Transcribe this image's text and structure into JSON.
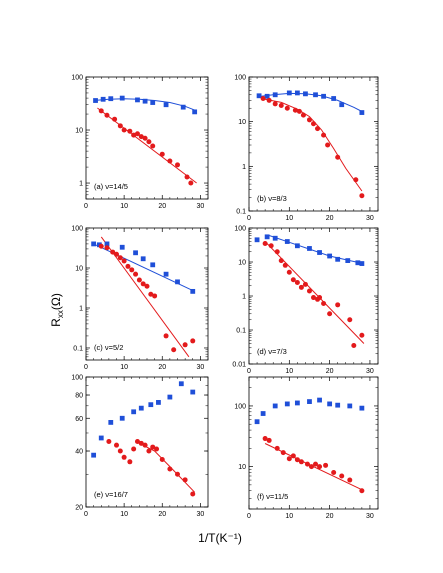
{
  "figure": {
    "ylabel_main": "R",
    "ylabel_sub": "xx",
    "ylabel_unit": "(Ω)",
    "xlabel": "1/T(K⁻¹)"
  },
  "chart_data": [
    {
      "type": "scatter",
      "label": "(a) ν=14/5",
      "yscale": "log",
      "ylim": [
        0.5,
        100
      ],
      "yticks": [
        1,
        10,
        100
      ],
      "ytick_labels": [
        "1",
        "10",
        "100"
      ],
      "xlim": [
        0,
        32
      ],
      "xticks": [
        0,
        10,
        20,
        30
      ],
      "xtick_labels": [
        "0",
        "10",
        "20",
        "30"
      ],
      "series": [
        {
          "color": "#1f4fd8",
          "marker": "square",
          "x": [
            2.5,
            4.5,
            6.5,
            9.5,
            13.5,
            15.5,
            17.5,
            21,
            25.5,
            28.5
          ],
          "y": [
            36,
            38,
            39,
            40,
            37,
            35,
            33,
            30,
            27,
            22
          ]
        },
        {
          "color": "#e31a1c",
          "marker": "circle",
          "x": [
            4,
            5.5,
            7.5,
            9,
            10,
            11.5,
            12.5,
            13.5,
            14.5,
            15.5,
            16.5,
            17.5,
            20,
            22,
            24,
            26.5,
            27.5
          ],
          "y": [
            23,
            19,
            16,
            12,
            10,
            9.5,
            8,
            8.5,
            7.5,
            7,
            6,
            5,
            3.5,
            2.6,
            2.2,
            1.3,
            1.0
          ]
        }
      ],
      "fits": [
        {
          "color": "#1f4fd8",
          "x": [
            2,
            6,
            10,
            14,
            18,
            22,
            26,
            29
          ],
          "y": [
            36,
            38,
            39,
            38,
            36,
            33,
            28,
            23
          ]
        },
        {
          "color": "#e31a1c",
          "x": [
            3,
            29
          ],
          "y": [
            26,
            1.0
          ]
        }
      ]
    },
    {
      "type": "scatter",
      "label": "(b) ν=8/3",
      "yscale": "log",
      "ylim": [
        0.1,
        100
      ],
      "yticks": [
        0.1,
        1,
        10,
        100
      ],
      "ytick_labels": [
        "0.1",
        "1",
        "10",
        "100"
      ],
      "xlim": [
        0,
        32
      ],
      "xticks": [
        0,
        10,
        20,
        30
      ],
      "xtick_labels": [
        "0",
        "10",
        "20",
        "30"
      ],
      "series": [
        {
          "color": "#1f4fd8",
          "marker": "square",
          "x": [
            2.5,
            4.5,
            6.5,
            10,
            12,
            14,
            16.5,
            18.5,
            21,
            23,
            28
          ],
          "y": [
            38,
            37,
            40,
            44,
            44,
            42,
            40,
            37,
            33,
            24,
            16
          ]
        },
        {
          "color": "#e31a1c",
          "marker": "circle",
          "x": [
            3.5,
            5,
            6.5,
            8,
            9.5,
            11.5,
            12.5,
            13.5,
            15,
            16,
            17,
            18.5,
            19.5,
            22,
            26.5,
            28
          ],
          "y": [
            33,
            30,
            25,
            23,
            20,
            18,
            17,
            14,
            11,
            9,
            7,
            5,
            3,
            1.6,
            0.5,
            0.22
          ]
        }
      ],
      "fits": [
        {
          "color": "#1f4fd8",
          "x": [
            2,
            6,
            10,
            14,
            18,
            22,
            26,
            28.5
          ],
          "y": [
            36,
            40,
            43,
            42,
            38,
            30,
            21,
            16
          ]
        },
        {
          "color": "#e31a1c",
          "x": [
            3,
            8,
            12,
            15,
            18,
            21,
            24,
            28
          ],
          "y": [
            33,
            27,
            19,
            13,
            6.5,
            2.5,
            0.9,
            0.28
          ]
        }
      ]
    },
    {
      "type": "scatter",
      "label": "(c) ν=5/2",
      "yscale": "log",
      "ylim": [
        0.05,
        100
      ],
      "yticks": [
        0.1,
        1,
        10,
        100
      ],
      "ytick_labels": [
        "0.1",
        "1",
        "10",
        "100"
      ],
      "xlim": [
        0,
        32
      ],
      "xticks": [
        0,
        10,
        20,
        30
      ],
      "xtick_labels": [
        "0",
        "10",
        "20",
        "30"
      ],
      "series": [
        {
          "color": "#1f4fd8",
          "marker": "square",
          "x": [
            2,
            3.5,
            5.5,
            9.5,
            13,
            15,
            17.5,
            21,
            24,
            28
          ],
          "y": [
            40,
            38,
            40,
            33,
            24,
            17,
            12,
            7,
            4.5,
            2.6
          ]
        },
        {
          "color": "#e31a1c",
          "marker": "circle",
          "x": [
            4,
            5.5,
            7,
            8,
            9,
            10,
            11,
            12,
            13,
            14,
            15,
            16,
            17,
            18,
            21,
            23,
            26,
            28
          ],
          "y": [
            35,
            32,
            25,
            22,
            18,
            15,
            11,
            9,
            7,
            5,
            4,
            3.5,
            2.2,
            2.0,
            0.2,
            0.09,
            0.12,
            0.15
          ]
        }
      ],
      "fits": [
        {
          "color": "#1f4fd8",
          "x": [
            2,
            28.5
          ],
          "y": [
            40,
            2.6
          ]
        },
        {
          "color": "#e31a1c",
          "x": [
            4,
            27
          ],
          "y": [
            60,
            0.06
          ]
        }
      ]
    },
    {
      "type": "scatter",
      "label": "(d) ν=7/3",
      "yscale": "log",
      "ylim": [
        0.01,
        100
      ],
      "yticks": [
        0.01,
        0.1,
        1,
        10,
        100
      ],
      "ytick_labels": [
        "0.01",
        "0.1",
        "1",
        "10",
        "100"
      ],
      "xlim": [
        0,
        32
      ],
      "xticks": [
        0,
        10,
        20,
        30
      ],
      "xtick_labels": [
        "0",
        "10",
        "20",
        "30"
      ],
      "series": [
        {
          "color": "#1f4fd8",
          "marker": "square",
          "x": [
            2,
            4.5,
            6.5,
            9.5,
            12,
            15,
            17.5,
            20,
            22,
            24.5,
            27,
            28
          ],
          "y": [
            45,
            55,
            50,
            40,
            30,
            25,
            19,
            15,
            12,
            11,
            9.5,
            9
          ]
        },
        {
          "color": "#e31a1c",
          "marker": "circle",
          "x": [
            4,
            5.5,
            7,
            8,
            9,
            10,
            11,
            12,
            13,
            14,
            15,
            16,
            17,
            17.5,
            18.5,
            20,
            22,
            25,
            26,
            28
          ],
          "y": [
            35,
            30,
            20,
            11,
            8,
            5,
            3,
            2.5,
            1.8,
            2.2,
            1.4,
            0.9,
            0.8,
            0.9,
            0.6,
            0.3,
            0.55,
            0.2,
            0.035,
            0.07
          ]
        }
      ],
      "fits": [
        {
          "color": "#1f4fd8",
          "x": [
            5,
            10,
            15,
            20,
            25,
            28.5
          ],
          "y": [
            60,
            38,
            24,
            15,
            11,
            9
          ]
        },
        {
          "color": "#e31a1c",
          "x": [
            4,
            28.5
          ],
          "y": [
            40,
            0.04
          ]
        }
      ]
    },
    {
      "type": "scatter",
      "label": "(e) ν=16/7",
      "yscale": "log",
      "ylim": [
        20,
        100
      ],
      "yticks": [
        20,
        40,
        60,
        80,
        100
      ],
      "ytick_labels": [
        "20",
        "40",
        "60",
        "80",
        "100"
      ],
      "xlim": [
        0,
        32
      ],
      "xticks": [
        0,
        10,
        20,
        30
      ],
      "xtick_labels": [
        "0",
        "10",
        "20",
        "30"
      ],
      "series": [
        {
          "color": "#1f4fd8",
          "marker": "square",
          "x": [
            2,
            4,
            6.5,
            9.5,
            12.5,
            14.5,
            17,
            19,
            22,
            25,
            28
          ],
          "y": [
            38,
            47,
            57,
            60,
            65,
            68,
            71,
            73,
            78,
            92,
            83
          ]
        },
        {
          "color": "#e31a1c",
          "marker": "circle",
          "x": [
            6,
            8,
            9,
            10,
            11.5,
            12.5,
            13.5,
            14.5,
            15.5,
            16.5,
            17.5,
            18.5,
            20,
            22,
            24,
            26,
            28
          ],
          "y": [
            45,
            43,
            40,
            37,
            35,
            41,
            45,
            44,
            43,
            40,
            42,
            41,
            36,
            32,
            30,
            28,
            23.5
          ]
        }
      ],
      "fits": [
        {
          "color": "#e31a1c",
          "x": [
            13,
            18,
            22,
            25,
            28.5
          ],
          "y": [
            45,
            40,
            33,
            28.5,
            24
          ]
        }
      ]
    },
    {
      "type": "scatter",
      "label": "(f) ν=11/5",
      "yscale": "log",
      "ylim": [
        2,
        300
      ],
      "yticks": [
        10,
        100
      ],
      "ytick_labels": [
        "10",
        "100"
      ],
      "xlim": [
        0,
        32
      ],
      "xticks": [
        0,
        10,
        20,
        30
      ],
      "xtick_labels": [
        "0",
        "10",
        "20",
        "30"
      ],
      "series": [
        {
          "color": "#1f4fd8",
          "marker": "square",
          "x": [
            2,
            3.5,
            6.5,
            9.5,
            12,
            15,
            17.5,
            20,
            22,
            25,
            28
          ],
          "y": [
            55,
            75,
            100,
            108,
            112,
            118,
            125,
            108,
            103,
            100,
            92
          ]
        },
        {
          "color": "#e31a1c",
          "marker": "circle",
          "x": [
            4,
            5,
            7,
            8.5,
            10,
            11,
            12,
            13,
            14.5,
            15.5,
            16.5,
            17.5,
            19,
            21,
            23,
            25,
            28
          ],
          "y": [
            29,
            27,
            20,
            17,
            13.5,
            15,
            13,
            12,
            11,
            10,
            11,
            10,
            10.5,
            8,
            7,
            6,
            4
          ]
        }
      ],
      "fits": [
        {
          "color": "#e31a1c",
          "x": [
            4,
            28.5
          ],
          "y": [
            24,
            4
          ]
        }
      ]
    }
  ]
}
